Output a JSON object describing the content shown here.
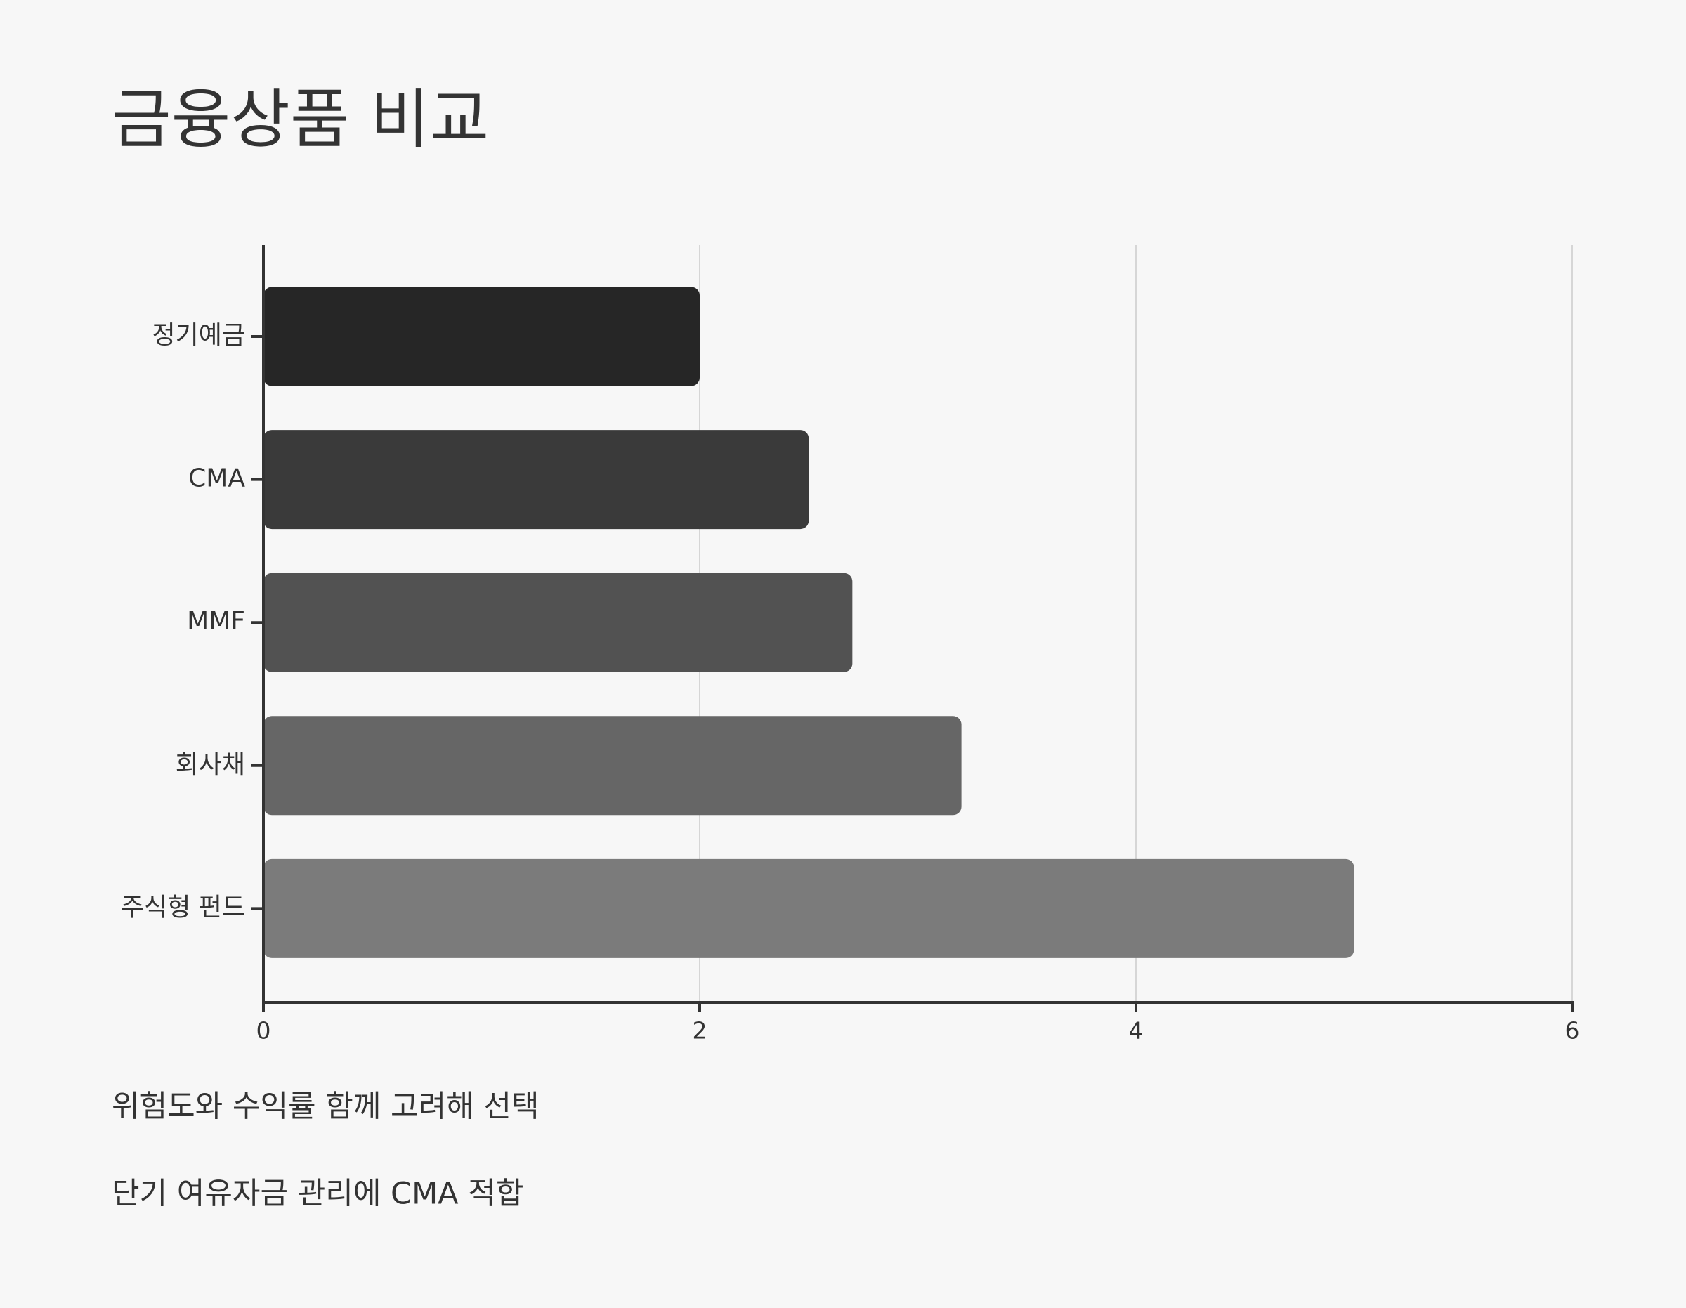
{
  "chart_data": {
    "type": "bar",
    "orientation": "horizontal",
    "title": "금융상품 비교",
    "categories": [
      "정기예금",
      "CMA",
      "MMF",
      "회사채",
      "주식형 펀드"
    ],
    "values": [
      2.0,
      2.5,
      2.7,
      3.2,
      5.0
    ],
    "colors": [
      "#262626",
      "#3a3a3a",
      "#525252",
      "#666666",
      "#7b7b7b"
    ],
    "xlim": [
      0,
      6
    ],
    "xticks": [
      0,
      2,
      4,
      6
    ],
    "grid": true,
    "annotations": [
      "위험도와 수익률 함께 고려해 선택",
      "단기 여유자금 관리에 CMA 적합"
    ]
  }
}
